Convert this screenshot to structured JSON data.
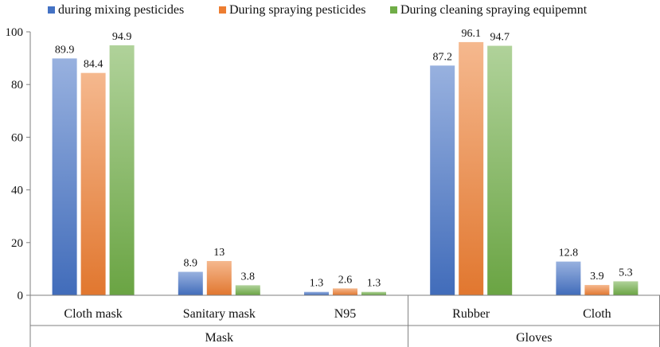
{
  "chart_data": {
    "type": "bar",
    "title": "",
    "xlabel": "",
    "ylabel": "",
    "ylim": [
      0,
      100
    ],
    "yticks": [
      0,
      20,
      40,
      60,
      80,
      100
    ],
    "grid": false,
    "legend_position": "top",
    "groups": [
      {
        "label": "Mask",
        "categories": [
          "Cloth mask",
          "Sanitary mask",
          "N95"
        ]
      },
      {
        "label": "Gloves",
        "categories": [
          "Rubber",
          "Cloth"
        ]
      }
    ],
    "categories": [
      "Cloth mask",
      "Sanitary mask",
      "N95",
      "Rubber",
      "Cloth"
    ],
    "series": [
      {
        "name": "during mixing pesticides",
        "color": "#4472c4",
        "values": [
          89.9,
          8.9,
          1.3,
          87.2,
          12.8
        ],
        "labels": [
          "89.9",
          "8.9",
          "1.3",
          "87.2",
          "12.8"
        ]
      },
      {
        "name": "During spraying pesticides",
        "color": "#ed7d31",
        "values": [
          84.4,
          13,
          2.6,
          96.1,
          3.9
        ],
        "labels": [
          "84.4",
          "13",
          "2.6",
          "96.1",
          "3.9"
        ]
      },
      {
        "name": "During cleaning spraying equipemnt",
        "color": "#70ad47",
        "values": [
          94.9,
          3.8,
          1.3,
          94.7,
          5.3
        ],
        "labels": [
          "94.9",
          "3.8",
          "1.3",
          "94.7",
          "5.3"
        ]
      }
    ]
  }
}
